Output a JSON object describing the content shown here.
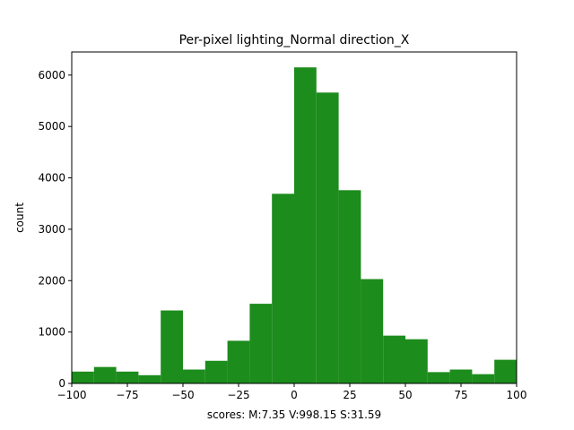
{
  "chart_data": {
    "type": "bar",
    "title": "Per-pixel lighting_Normal direction_X",
    "xlabel": "scores: M:7.35 V:998.15 S:31.59",
    "ylabel": "count",
    "xlim": [
      -100,
      100
    ],
    "ylim": [
      0,
      6450
    ],
    "bar_color": "#1c8c1c",
    "bin_edges": [
      -100,
      -90,
      -80,
      -70,
      -60,
      -50,
      -40,
      -30,
      -20,
      -10,
      0,
      10,
      20,
      30,
      40,
      50,
      60,
      70,
      80,
      90,
      100
    ],
    "counts": [
      230,
      320,
      230,
      160,
      1420,
      270,
      440,
      830,
      1550,
      3690,
      6150,
      5660,
      3760,
      2030,
      930,
      860,
      220,
      270,
      180,
      460
    ],
    "xticks": [
      -100,
      -75,
      -50,
      -25,
      0,
      25,
      50,
      75,
      100
    ],
    "xtick_labels": [
      "−100",
      "−75",
      "−50",
      "−25",
      "0",
      "25",
      "50",
      "75",
      "100"
    ],
    "yticks": [
      0,
      1000,
      2000,
      3000,
      4000,
      5000,
      6000
    ],
    "ytick_labels": [
      "0",
      "1000",
      "2000",
      "3000",
      "4000",
      "5000",
      "6000"
    ]
  }
}
